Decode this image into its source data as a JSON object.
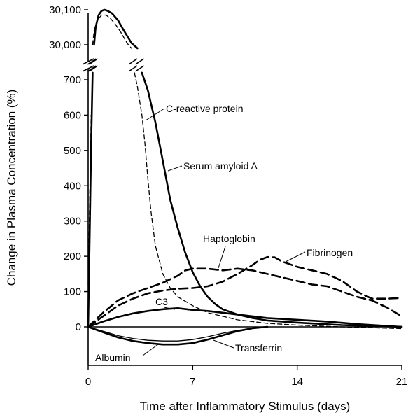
{
  "chart_data": {
    "type": "line",
    "title": "",
    "xlabel": "Time after Inflammatory Stimulus (days)",
    "ylabel": "Change in Plasma Concentration (%)",
    "xlim": [
      0,
      21
    ],
    "x_ticks": [
      "0",
      "7",
      "14",
      "21"
    ],
    "y_ticks_lower": [
      "0",
      "100",
      "200",
      "300",
      "400",
      "500",
      "600",
      "700"
    ],
    "y_ticks_upper": [
      "30,000",
      "30,100"
    ],
    "ylim_lower": [
      -130,
      730
    ],
    "ylim_upper": [
      29970,
      30105
    ],
    "axis_break": true,
    "grid": false,
    "legend": "none (curves labeled directly)",
    "series": [
      {
        "name": "C-reactive protein",
        "style": "solid",
        "weight": "heavy",
        "x": [
          0,
          0.1,
          0.2,
          0.3,
          0.4,
          0.5,
          0.7,
          0.9,
          1.1,
          1.3,
          1.6,
          2.0,
          2.4,
          2.9,
          3.3,
          3.6,
          4.0,
          4.5,
          5.0,
          5.5,
          6.0,
          6.5,
          7.0,
          7.5,
          8.0,
          8.5,
          9.0,
          10.0,
          11.0,
          12.0,
          14.0,
          17.0,
          21.0
        ],
        "y": [
          0,
          250,
          520,
          720,
          30000,
          30050,
          30085,
          30097,
          30100,
          30097,
          30090,
          30070,
          30040,
          30005,
          29990,
          720,
          670,
          580,
          470,
          360,
          280,
          210,
          155,
          115,
          85,
          65,
          50,
          35,
          25,
          18,
          12,
          5,
          0
        ]
      },
      {
        "name": "Serum amyloid A",
        "style": "dashed",
        "weight": "light",
        "x": [
          0,
          0.1,
          0.2,
          0.3,
          0.4,
          0.6,
          0.9,
          1.2,
          1.5,
          1.8,
          2.2,
          2.6,
          2.9,
          3.1,
          3.3,
          3.6,
          3.8,
          4.0,
          4.2,
          4.5,
          5.0,
          5.5,
          6.0,
          7.0,
          8.0,
          10.0,
          12.0,
          14.0,
          17.0,
          21.0
        ],
        "y": [
          120,
          350,
          600,
          30000,
          30040,
          30070,
          30085,
          30085,
          30075,
          30060,
          30035,
          30005,
          29990,
          720,
          680,
          600,
          520,
          420,
          330,
          230,
          150,
          110,
          85,
          60,
          40,
          20,
          10,
          5,
          0,
          -5
        ]
      },
      {
        "name": "Haptoglobin",
        "style": "dashed",
        "weight": "heavy",
        "x": [
          0,
          1,
          2,
          3,
          4,
          5,
          6,
          6.5,
          7,
          8,
          9,
          10,
          11,
          12,
          13,
          14,
          15,
          16,
          17,
          18,
          19,
          20,
          21
        ],
        "y": [
          0,
          40,
          75,
          95,
          110,
          125,
          145,
          160,
          165,
          165,
          160,
          165,
          160,
          150,
          140,
          130,
          120,
          115,
          100,
          85,
          75,
          55,
          30
        ]
      },
      {
        "name": "Fibrinogen",
        "style": "dashed",
        "weight": "heavy",
        "x": [
          0,
          1,
          2,
          3,
          4,
          5,
          6,
          7,
          8,
          9,
          10,
          11,
          11.5,
          12,
          12.5,
          13,
          14,
          15,
          16,
          17,
          18,
          19,
          20,
          21
        ],
        "y": [
          0,
          30,
          60,
          80,
          95,
          103,
          108,
          110,
          115,
          128,
          150,
          175,
          190,
          198,
          197,
          185,
          170,
          160,
          150,
          130,
          100,
          80,
          80,
          82
        ]
      },
      {
        "name": "C3",
        "style": "solid",
        "weight": "heavy",
        "x": [
          0,
          1,
          2,
          3,
          4,
          5,
          6,
          7,
          8,
          9,
          10,
          11,
          12,
          14,
          16,
          18,
          21
        ],
        "y": [
          0,
          15,
          28,
          38,
          45,
          50,
          53,
          48,
          45,
          40,
          35,
          30,
          25,
          20,
          15,
          8,
          0
        ]
      },
      {
        "name": "Transferrin",
        "style": "solid",
        "weight": "light",
        "x": [
          0,
          1,
          2,
          3,
          4,
          5,
          6,
          7,
          8,
          9,
          10,
          11,
          12
        ],
        "y": [
          0,
          -12,
          -25,
          -33,
          -38,
          -40,
          -40,
          -36,
          -28,
          -18,
          -10,
          -4,
          0
        ]
      },
      {
        "name": "Albumin",
        "style": "solid",
        "weight": "heavy",
        "x": [
          0,
          1,
          2,
          3,
          4,
          5,
          6,
          7,
          8,
          9,
          10,
          11,
          12
        ],
        "y": [
          0,
          -15,
          -30,
          -40,
          -46,
          -50,
          -50,
          -46,
          -36,
          -24,
          -12,
          -4,
          0
        ]
      }
    ],
    "annotations": [
      "C-reactive protein",
      "Serum amyloid A",
      "Haptoglobin",
      "Fibrinogen",
      "C3",
      "Transferrin",
      "Albumin"
    ]
  }
}
